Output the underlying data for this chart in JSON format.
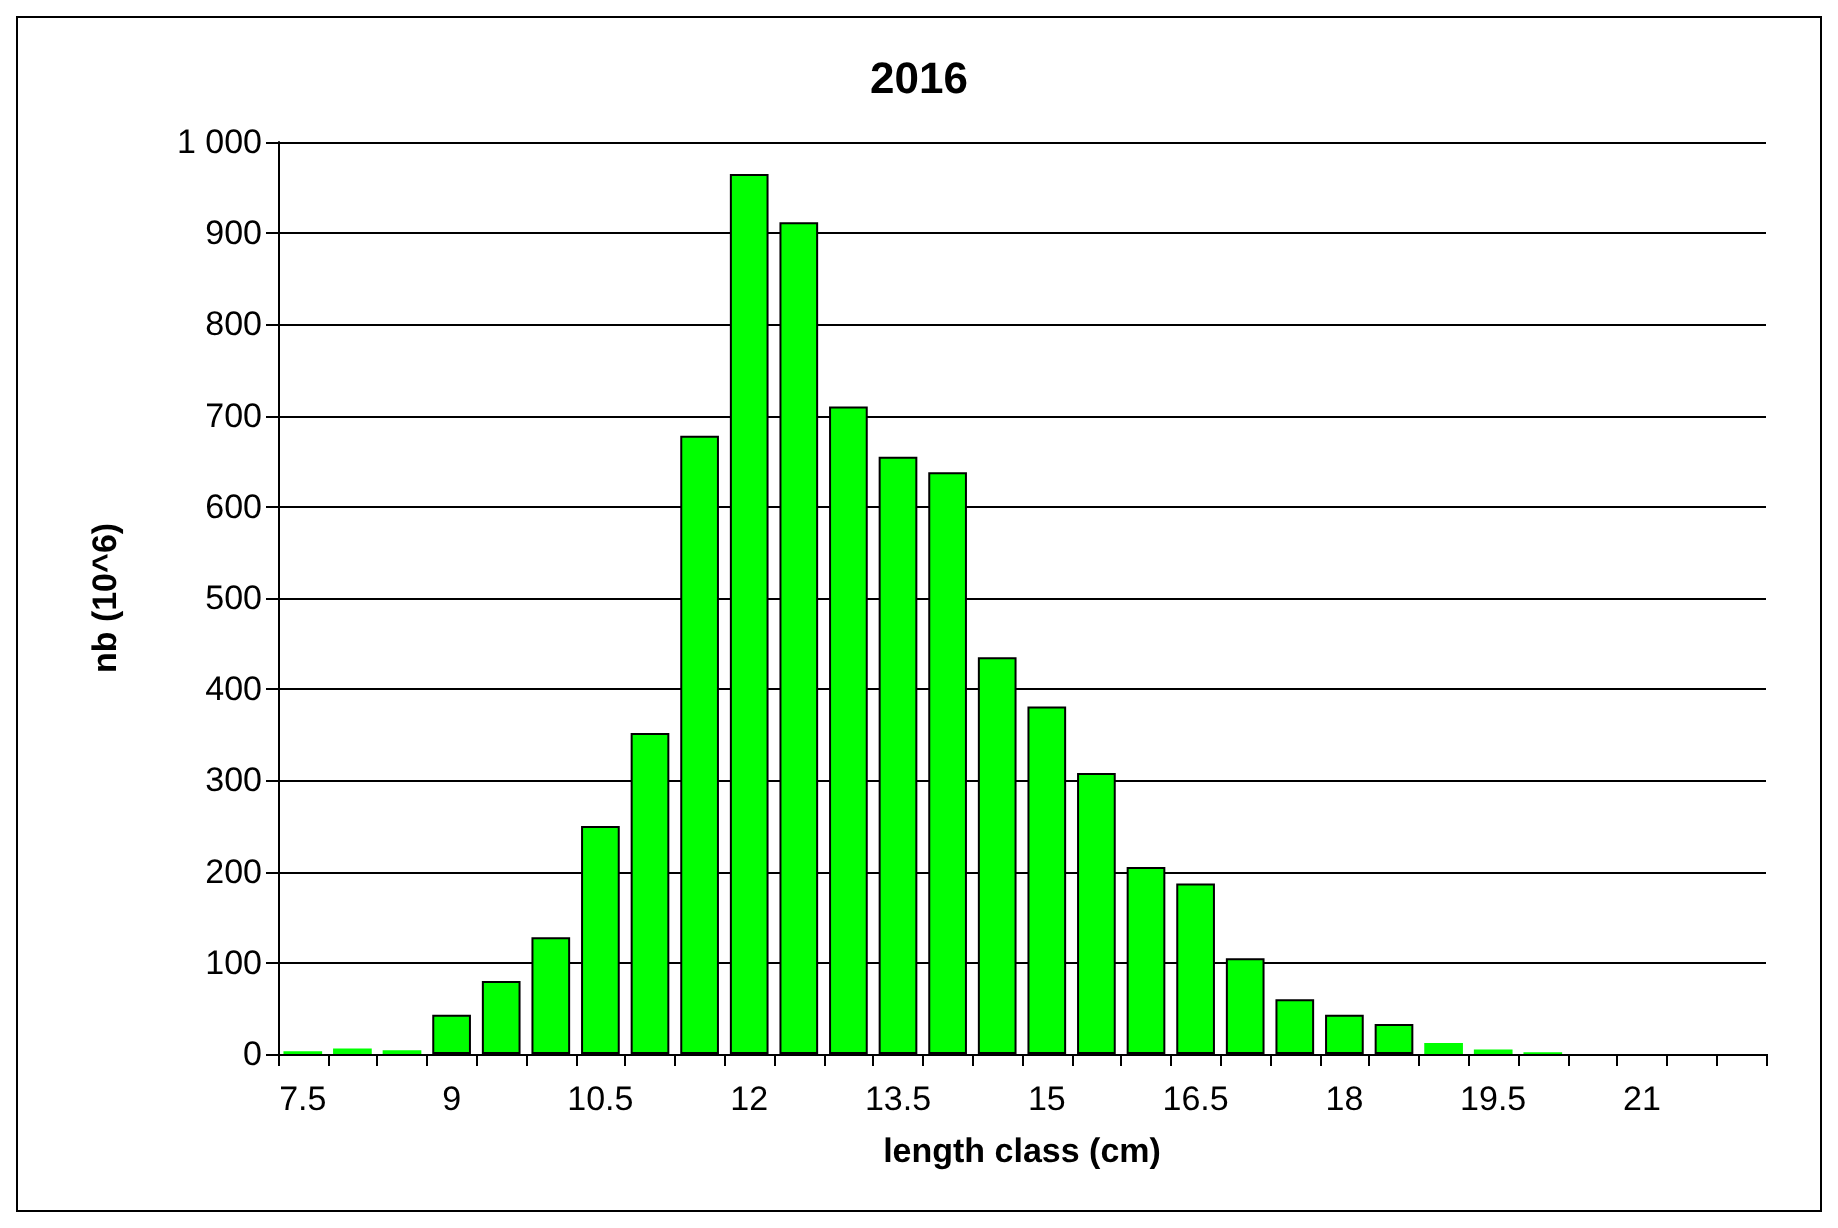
{
  "chart_data": {
    "type": "bar",
    "title": "2016",
    "xlabel": "length class (cm)",
    "ylabel": "nb (10^6)",
    "categories": [
      "7.5",
      null,
      null,
      "9",
      null,
      null,
      "10.5",
      null,
      null,
      "12",
      null,
      null,
      "13.5",
      null,
      null,
      "15",
      null,
      null,
      "16.5",
      null,
      null,
      "18",
      null,
      null,
      "19.5",
      null,
      null,
      "21",
      null,
      null
    ],
    "values": [
      3,
      6,
      4,
      43,
      80,
      128,
      250,
      352,
      678,
      965,
      912,
      710,
      655,
      638,
      435,
      381,
      308,
      205,
      187,
      105,
      60,
      43,
      33,
      12,
      5,
      2,
      null,
      null,
      null,
      null
    ],
    "color": "#00ff00",
    "ylim": [
      0,
      1000
    ],
    "yticks": [
      0,
      100,
      200,
      300,
      400,
      500,
      600,
      700,
      800,
      900,
      {
        "value": 1000,
        "label": "1 000"
      }
    ],
    "grid": "y"
  }
}
